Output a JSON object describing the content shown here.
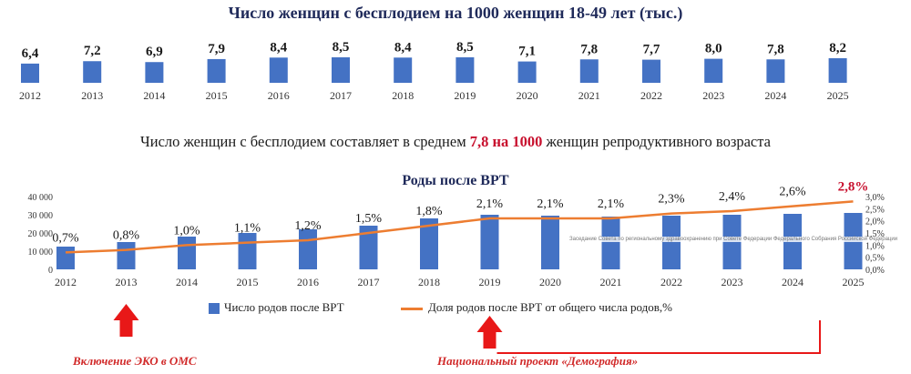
{
  "header": {
    "title_top": "Число женщин с бесплодием на 1000 женщин 18-49 лет (тыс.)",
    "subtitle_pre": "Число женщин с бесплодием составляет в среднем",
    "subtitle_highlight": "7,8 на 1000",
    "subtitle_post": "женщин репродуктивного возраста",
    "title_bottom": "Роды после ВРТ"
  },
  "legend": {
    "bars": "Число родов после ВРТ",
    "line": "Доля родов после ВРТ от общего числа родов,%"
  },
  "notes": {
    "eco": "Включение ЭКО в ОМС",
    "demography": "Национальный проект «Демография»"
  },
  "watermark": "Заседание Совета по региональному здравоохранению при Совете Федерации Федерального Собрания Российской Федерации",
  "colors": {
    "bar": "#4472c4",
    "line": "#ed7d31",
    "accent": "#c8102e",
    "title": "#1f2a5a"
  },
  "chart_data": [
    {
      "type": "bar",
      "title": "Число женщин с бесплодием на 1000 женщин 18-49 лет (тыс.)",
      "categories": [
        "2012",
        "2013",
        "2014",
        "2015",
        "2016",
        "2017",
        "2018",
        "2019",
        "2020",
        "2021",
        "2022",
        "2023",
        "2024",
        "2025"
      ],
      "values": [
        6.4,
        7.2,
        6.9,
        7.9,
        8.4,
        8.5,
        8.4,
        8.5,
        7.1,
        7.8,
        7.7,
        8.0,
        7.8,
        8.2
      ],
      "labels": [
        "6,4",
        "7,2",
        "6,9",
        "7,9",
        "8,4",
        "8,5",
        "8,4",
        "8,5",
        "7,1",
        "7,8",
        "7,7",
        "8,0",
        "7,8",
        "8,2"
      ]
    },
    {
      "type": "bar+line",
      "title": "Роды после ВРТ",
      "categories": [
        "2012",
        "2013",
        "2014",
        "2015",
        "2016",
        "2017",
        "2018",
        "2019",
        "2020",
        "2021",
        "2022",
        "2023",
        "2024",
        "2025"
      ],
      "series": [
        {
          "name": "Число родов после ВРТ",
          "type": "bar",
          "axis": "left",
          "values": [
            12500,
            15000,
            18000,
            20000,
            22000,
            24000,
            28000,
            30000,
            29500,
            29000,
            29500,
            30000,
            30500,
            31000
          ]
        },
        {
          "name": "Доля родов после ВРТ от общего числа родов,%",
          "type": "line",
          "axis": "right",
          "values": [
            0.7,
            0.8,
            1.0,
            1.1,
            1.2,
            1.5,
            1.8,
            2.1,
            2.1,
            2.1,
            2.3,
            2.4,
            2.6,
            2.8
          ],
          "labels": [
            "0,7%",
            "0,8%",
            "1,0%",
            "1,1%",
            "1,2%",
            "1,5%",
            "1,8%",
            "2,1%",
            "2,1%",
            "2,1%",
            "2,3%",
            "2,4%",
            "2,6%",
            "2,8%"
          ]
        }
      ],
      "y_left": {
        "range": [
          0,
          40000
        ],
        "ticks": [
          "0",
          "10 000",
          "20 000",
          "30 000",
          "40 000"
        ]
      },
      "y_right": {
        "range": [
          0,
          3.0
        ],
        "ticks": [
          "0,0%",
          "0,5%",
          "1,0%",
          "1,5%",
          "2,0%",
          "2,5%",
          "3,0%"
        ]
      }
    }
  ]
}
